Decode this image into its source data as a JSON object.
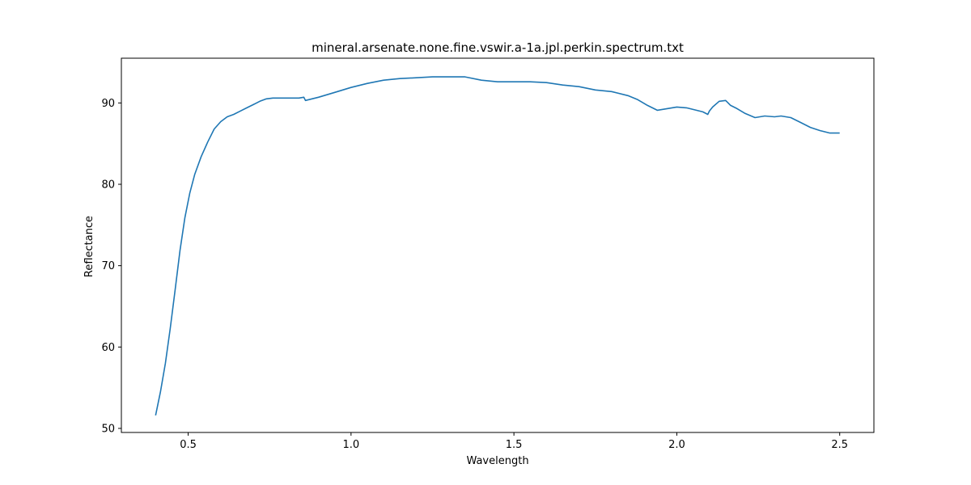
{
  "chart_data": {
    "type": "line",
    "title": "mineral.arsenate.none.fine.vswir.a-1a.jpl.perkin.spectrum.txt",
    "xlabel": "Wavelength",
    "ylabel": "Reflectance",
    "xlim": [
      0.295,
      2.605
    ],
    "ylim": [
      49.5,
      95.5
    ],
    "xticks": [
      0.5,
      1.0,
      1.5,
      2.0,
      2.5
    ],
    "xtick_labels": [
      "0.5",
      "1.0",
      "1.5",
      "2.0",
      "2.5"
    ],
    "yticks": [
      50,
      60,
      70,
      80,
      90
    ],
    "ytick_labels": [
      "50",
      "60",
      "70",
      "80",
      "90"
    ],
    "grid": false,
    "line_color": "#1f77b4",
    "series": [
      {
        "x": [
          0.4,
          0.415,
          0.43,
          0.445,
          0.46,
          0.475,
          0.49,
          0.505,
          0.52,
          0.54,
          0.56,
          0.58,
          0.6,
          0.62,
          0.64,
          0.66,
          0.68,
          0.7,
          0.72,
          0.74,
          0.76,
          0.78,
          0.8,
          0.82,
          0.84,
          0.855,
          0.86,
          0.87,
          0.9,
          0.95,
          1.0,
          1.05,
          1.1,
          1.15,
          1.2,
          1.25,
          1.3,
          1.35,
          1.4,
          1.45,
          1.5,
          1.55,
          1.6,
          1.65,
          1.7,
          1.75,
          1.8,
          1.85,
          1.88,
          1.91,
          1.94,
          1.97,
          2.0,
          2.03,
          2.06,
          2.08,
          2.095,
          2.1,
          2.11,
          2.13,
          2.15,
          2.165,
          2.185,
          2.21,
          2.24,
          2.27,
          2.3,
          2.32,
          2.35,
          2.38,
          2.41,
          2.44,
          2.47,
          2.5
        ],
        "y": [
          51.6,
          54.5,
          58.0,
          62.3,
          67.0,
          71.9,
          75.9,
          78.9,
          81.2,
          83.4,
          85.2,
          86.8,
          87.7,
          88.3,
          88.6,
          89.0,
          89.4,
          89.8,
          90.2,
          90.5,
          90.6,
          90.6,
          90.6,
          90.6,
          90.6,
          90.7,
          90.3,
          90.4,
          90.7,
          91.3,
          91.9,
          92.4,
          92.8,
          93.0,
          93.1,
          93.2,
          93.2,
          93.2,
          92.8,
          92.6,
          92.6,
          92.6,
          92.5,
          92.2,
          92.0,
          91.6,
          91.4,
          90.9,
          90.4,
          89.7,
          89.1,
          89.3,
          89.5,
          89.4,
          89.1,
          88.9,
          88.6,
          89.0,
          89.5,
          90.2,
          90.3,
          89.7,
          89.3,
          88.7,
          88.2,
          88.4,
          88.3,
          88.4,
          88.2,
          87.6,
          87.0,
          86.6,
          86.3,
          86.3
        ]
      }
    ]
  }
}
